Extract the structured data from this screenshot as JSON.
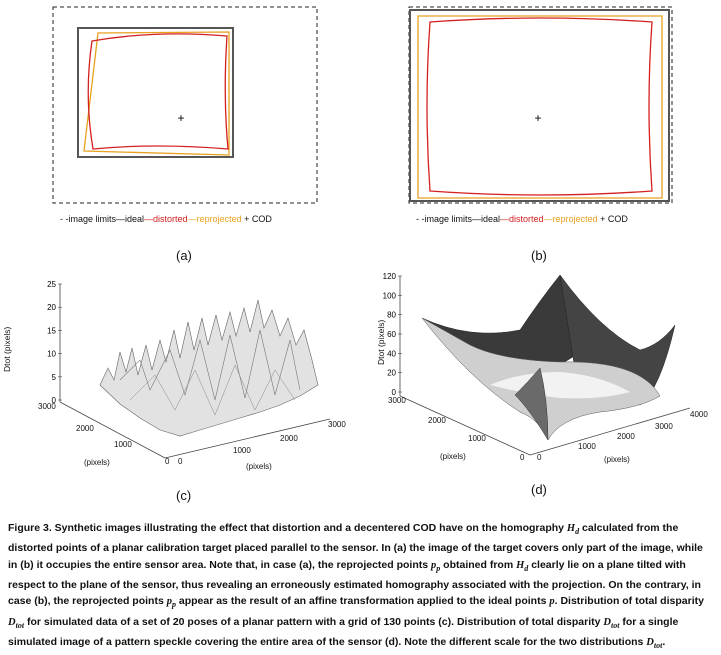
{
  "panel_a": {
    "legend": {
      "image_limits": "- -image limits",
      "ideal": "—ideal",
      "distorted": "—distorted",
      "reprojected": "—reprojected",
      "cod": "+ COD"
    },
    "label": "(a)"
  },
  "panel_b": {
    "legend": {
      "image_limits": "- -image limits",
      "ideal": "—ideal",
      "distorted": "—distorted",
      "reprojected": "—reprojected",
      "cod": "+ COD"
    },
    "label": "(b)"
  },
  "colors": {
    "ideal": "#555555",
    "distorted": "#d42020",
    "reprojected": "#e8a020",
    "limits": "#222222"
  },
  "chart_data": [
    {
      "type": "surface",
      "label": "(c)",
      "zlabel": "Dtot (pixels)",
      "zticks": [
        "0",
        "5",
        "10",
        "15",
        "20",
        "25"
      ],
      "zlim": [
        0,
        25
      ],
      "y_ticks": [
        "3000",
        "2000",
        "1000",
        "0"
      ],
      "y_label": "(pixels)",
      "x_ticks": [
        "0",
        "1000",
        "2000",
        "3000"
      ],
      "x_label": "(pixels)"
    },
    {
      "type": "surface",
      "label": "(d)",
      "zlabel": "Dtot (pixels)",
      "zticks": [
        "0",
        "20",
        "40",
        "60",
        "80",
        "100",
        "120"
      ],
      "zlim": [
        0,
        120
      ],
      "y_ticks": [
        "3000",
        "2000",
        "1000",
        "0"
      ],
      "y_label": "(pixels)",
      "x_ticks": [
        "0",
        "1000",
        "2000",
        "3000",
        "4000"
      ],
      "x_label": "(pixels)"
    }
  ],
  "caption": {
    "p1": "Figure 3. Synthetic images illustrating the effect that distortion and a decentered COD have on the homography ",
    "hd1": "H",
    "hd1_sub": "d",
    "p2": " calculated from the distorted points of a planar calibration target placed parallel to the sensor. In (a) the image of the target covers only part of the image, while in (b) it occupies the entire sensor area. Note that, in case (a), the reprojected points ",
    "pp1": "p",
    "pp1_sub": "p",
    "p3": " obtained from ",
    "hd2": "H",
    "hd2_sub": "d",
    "p4": " clearly lie on a plane tilted with respect to the plane of the sensor, thus revealing an erroneously estimated homography associated with the projection. On the contrary, in case (b), the reprojected points ",
    "pp2": "p",
    "pp2_sub": "p",
    "p5": " appear as the result of an affine transformation applied to the ideal points ",
    "p_ideal": "p",
    "p6": ". Distribution of total disparity  ",
    "dtot1": "D",
    "dtot1_sub": "tot",
    "p7": " for simulated data of a set of 20 poses of a planar pattern with a grid of 130 points (c). Distribution of total disparity ",
    "dtot2": "D",
    "dtot2_sub": "tot",
    "p8": " for a single simulated image of a pattern speckle covering the entire area of the sensor (d). Note the different scale for the two distributions ",
    "dtot3": "D",
    "dtot3_sub": "tot",
    "p9": "."
  }
}
